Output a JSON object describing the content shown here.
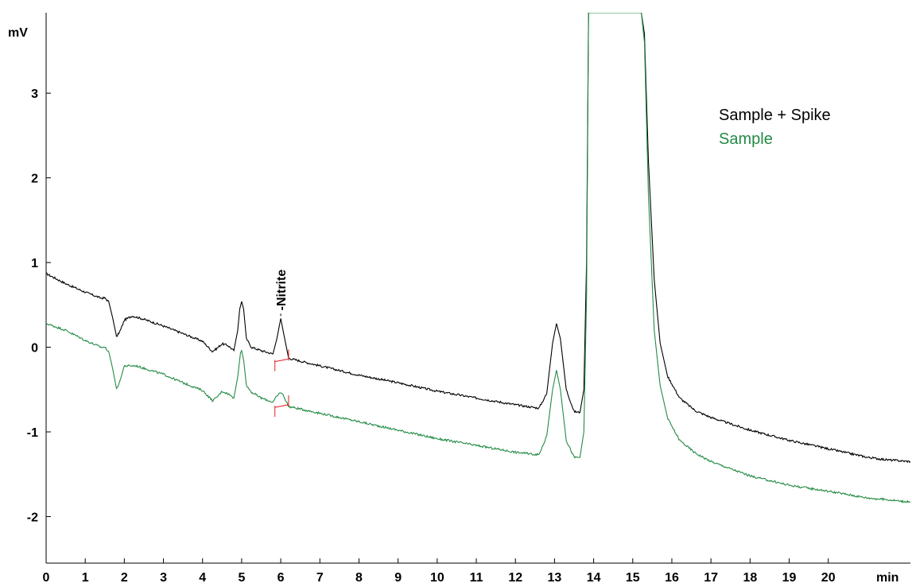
{
  "chart_data": {
    "type": "line",
    "title": "",
    "xlabel": "min",
    "ylabel": "mV",
    "xlim": [
      0,
      22.1
    ],
    "ylim": [
      -2.55,
      3.95
    ],
    "x_ticks": [
      0,
      1,
      2,
      3,
      4,
      5,
      6,
      7,
      8,
      9,
      10,
      11,
      12,
      13,
      14,
      15,
      16,
      17,
      18,
      19,
      20
    ],
    "y_ticks": [
      -2,
      -1,
      0,
      1,
      2,
      3
    ],
    "grid": false,
    "legend_position": "top-right",
    "series": [
      {
        "name": "Sample + Spike",
        "color": "#000000",
        "points": [
          [
            0.0,
            0.87
          ],
          [
            0.5,
            0.75
          ],
          [
            1.0,
            0.65
          ],
          [
            1.4,
            0.58
          ],
          [
            1.5,
            0.58
          ],
          [
            1.6,
            0.54
          ],
          [
            1.7,
            0.35
          ],
          [
            1.8,
            0.12
          ],
          [
            1.9,
            0.2
          ],
          [
            2.0,
            0.32
          ],
          [
            2.2,
            0.37
          ],
          [
            2.5,
            0.33
          ],
          [
            3.0,
            0.25
          ],
          [
            3.5,
            0.16
          ],
          [
            4.0,
            0.07
          ],
          [
            4.25,
            -0.05
          ],
          [
            4.35,
            -0.02
          ],
          [
            4.5,
            0.04
          ],
          [
            4.65,
            0.02
          ],
          [
            4.8,
            -0.04
          ],
          [
            4.9,
            0.2
          ],
          [
            4.95,
            0.45
          ],
          [
            5.0,
            0.54
          ],
          [
            5.05,
            0.45
          ],
          [
            5.12,
            0.1
          ],
          [
            5.25,
            0.0
          ],
          [
            5.5,
            -0.04
          ],
          [
            5.8,
            -0.08
          ],
          [
            5.9,
            0.1
          ],
          [
            6.0,
            0.34
          ],
          [
            6.08,
            0.15
          ],
          [
            6.2,
            -0.13
          ],
          [
            7.0,
            -0.22
          ],
          [
            8.0,
            -0.33
          ],
          [
            9.0,
            -0.42
          ],
          [
            10.0,
            -0.52
          ],
          [
            11.0,
            -0.6
          ],
          [
            12.0,
            -0.68
          ],
          [
            12.6,
            -0.72
          ],
          [
            12.8,
            -0.55
          ],
          [
            12.95,
            0.05
          ],
          [
            13.05,
            0.28
          ],
          [
            13.15,
            0.1
          ],
          [
            13.3,
            -0.5
          ],
          [
            13.5,
            -0.76
          ],
          [
            13.65,
            -0.77
          ],
          [
            13.75,
            -0.5
          ],
          [
            13.82,
            1.0
          ],
          [
            13.87,
            3.95
          ],
          [
            15.22,
            3.95
          ],
          [
            15.3,
            3.7
          ],
          [
            15.4,
            2.2
          ],
          [
            15.55,
            0.8
          ],
          [
            15.7,
            0.05
          ],
          [
            15.9,
            -0.35
          ],
          [
            16.2,
            -0.6
          ],
          [
            16.6,
            -0.75
          ],
          [
            17.0,
            -0.83
          ],
          [
            18.0,
            -0.98
          ],
          [
            19.0,
            -1.1
          ],
          [
            20.0,
            -1.2
          ],
          [
            21.0,
            -1.3
          ],
          [
            21.5,
            -1.33
          ],
          [
            22.1,
            -1.35
          ]
        ]
      },
      {
        "name": "Sample",
        "color": "#238b45",
        "points": [
          [
            0.0,
            0.28
          ],
          [
            0.5,
            0.2
          ],
          [
            1.0,
            0.08
          ],
          [
            1.4,
            0.0
          ],
          [
            1.5,
            0.0
          ],
          [
            1.6,
            -0.05
          ],
          [
            1.7,
            -0.25
          ],
          [
            1.8,
            -0.5
          ],
          [
            1.9,
            -0.38
          ],
          [
            2.0,
            -0.22
          ],
          [
            2.3,
            -0.22
          ],
          [
            3.0,
            -0.32
          ],
          [
            3.5,
            -0.42
          ],
          [
            4.0,
            -0.51
          ],
          [
            4.25,
            -0.63
          ],
          [
            4.35,
            -0.6
          ],
          [
            4.5,
            -0.52
          ],
          [
            4.65,
            -0.55
          ],
          [
            4.8,
            -0.6
          ],
          [
            4.9,
            -0.35
          ],
          [
            4.97,
            -0.05
          ],
          [
            5.0,
            -0.04
          ],
          [
            5.05,
            -0.15
          ],
          [
            5.12,
            -0.45
          ],
          [
            5.25,
            -0.53
          ],
          [
            5.5,
            -0.6
          ],
          [
            5.8,
            -0.65
          ],
          [
            5.9,
            -0.58
          ],
          [
            6.0,
            -0.53
          ],
          [
            6.08,
            -0.58
          ],
          [
            6.2,
            -0.7
          ],
          [
            7.0,
            -0.78
          ],
          [
            8.0,
            -0.88
          ],
          [
            9.0,
            -0.98
          ],
          [
            10.0,
            -1.08
          ],
          [
            11.0,
            -1.16
          ],
          [
            12.0,
            -1.24
          ],
          [
            12.6,
            -1.27
          ],
          [
            12.8,
            -1.05
          ],
          [
            12.95,
            -0.5
          ],
          [
            13.05,
            -0.27
          ],
          [
            13.15,
            -0.5
          ],
          [
            13.3,
            -1.1
          ],
          [
            13.5,
            -1.3
          ],
          [
            13.65,
            -1.3
          ],
          [
            13.75,
            -1.0
          ],
          [
            13.82,
            0.6
          ],
          [
            13.87,
            3.95
          ],
          [
            15.22,
            3.95
          ],
          [
            15.3,
            3.6
          ],
          [
            15.4,
            1.8
          ],
          [
            15.55,
            0.2
          ],
          [
            15.7,
            -0.45
          ],
          [
            15.9,
            -0.85
          ],
          [
            16.2,
            -1.1
          ],
          [
            16.6,
            -1.25
          ],
          [
            17.0,
            -1.35
          ],
          [
            18.0,
            -1.52
          ],
          [
            19.0,
            -1.63
          ],
          [
            20.0,
            -1.7
          ],
          [
            21.0,
            -1.78
          ],
          [
            21.5,
            -1.8
          ],
          [
            22.1,
            -1.83
          ]
        ]
      }
    ],
    "annotations": [
      {
        "label": "Nitrite",
        "x": 6.0,
        "y": 0.34
      }
    ],
    "integration_markers": [
      {
        "x_start": 5.85,
        "x_end": 6.2,
        "y_start": -0.17,
        "y_end": -0.14,
        "series": 0
      },
      {
        "x_start": 5.85,
        "x_end": 6.2,
        "y_start": -0.71,
        "y_end": -0.68,
        "series": 1
      }
    ],
    "marker_color": "#e41a1c"
  }
}
